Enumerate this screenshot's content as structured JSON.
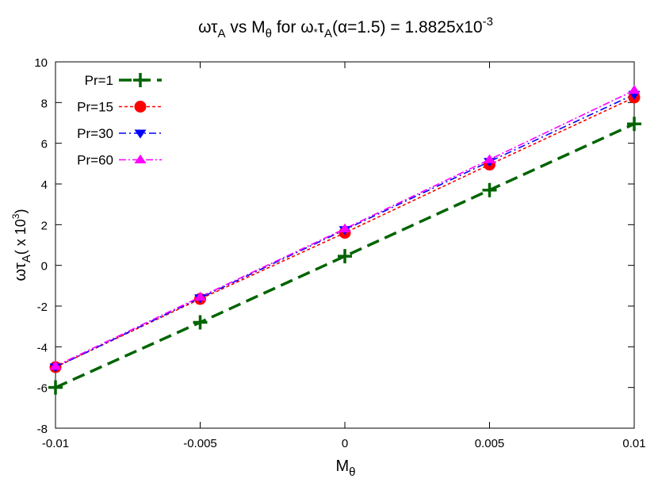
{
  "chart_data": {
    "type": "line",
    "title": {
      "omega_tau": "ωτ",
      "omega_tau_sub": "A",
      "vs": " vs M",
      "theta_sub": "θ",
      "for": " for ω",
      "star": "*",
      "tau2": "τ",
      "tau2_sub": "A",
      "alpha_text": "(α=1.5) = 1.8825x10",
      "exp": "-3"
    },
    "xlabel": {
      "main": "M",
      "sub": "θ"
    },
    "ylabel": {
      "main": "ωτ",
      "sub": "A",
      "tail": "( x 10",
      "sup": "3",
      "close": ")"
    },
    "x": [
      -0.01,
      -0.005,
      0,
      0.005,
      0.01
    ],
    "xlim": [
      -0.01,
      0.01
    ],
    "ylim": [
      -8,
      10
    ],
    "xticks": [
      "-0.01",
      "-0.005",
      "0",
      "0.005",
      "0.01"
    ],
    "yticks": [
      "-8",
      "-6",
      "-4",
      "-2",
      "0",
      "2",
      "4",
      "6",
      "8",
      "10"
    ],
    "grid": false,
    "legend_position": "top-left",
    "series": [
      {
        "name": "Pr=1",
        "values": [
          -6.0,
          -2.8,
          0.45,
          3.7,
          6.95
        ],
        "color": "#006400",
        "marker": "plus",
        "dash": "16,8"
      },
      {
        "name": "Pr=15",
        "values": [
          -5.0,
          -1.65,
          1.6,
          4.95,
          8.25
        ],
        "color": "#ff0000",
        "marker": "circle",
        "dash": "4,3"
      },
      {
        "name": "Pr=30",
        "values": [
          -5.0,
          -1.6,
          1.75,
          5.1,
          8.4
        ],
        "color": "#0000ff",
        "marker": "triangle-down",
        "dash": "9,4,2,4"
      },
      {
        "name": "Pr=60",
        "values": [
          -4.95,
          -1.55,
          1.8,
          5.2,
          8.6
        ],
        "color": "#ff00ff",
        "marker": "triangle-up",
        "dash": "9,3,2,3"
      }
    ]
  }
}
